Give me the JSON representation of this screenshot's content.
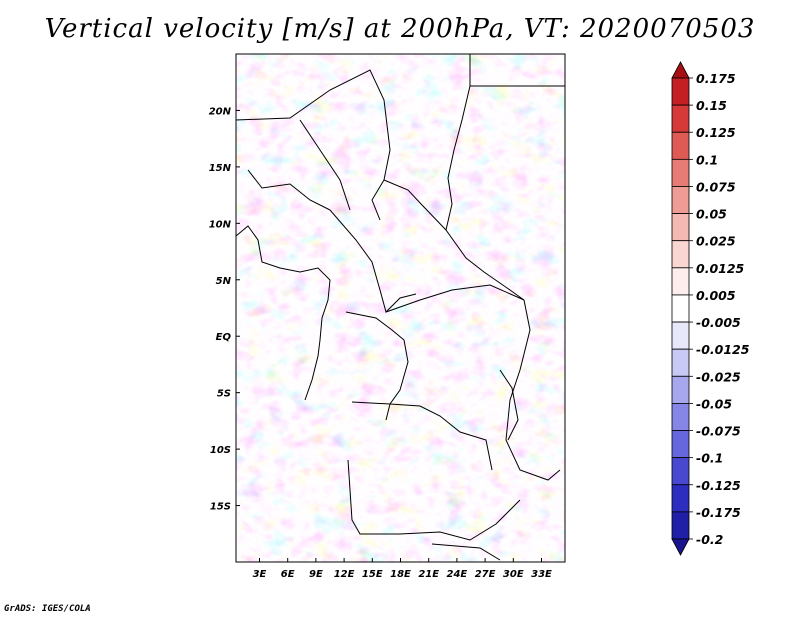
{
  "title": "Vertical velocity [m/s] at 200hPa, VT: 2020070503",
  "credit": "GrADS: IGES/COLA",
  "map": {
    "lon_ticks": [
      "3E",
      "6E",
      "9E",
      "12E",
      "15E",
      "18E",
      "21E",
      "24E",
      "27E",
      "30E",
      "33E"
    ],
    "lat_ticks": [
      "20N",
      "15N",
      "10N",
      "5N",
      "EQ",
      "5S",
      "10S",
      "15S"
    ],
    "lon_range": [
      0.5,
      35.5
    ],
    "lat_range": [
      -20,
      25
    ],
    "field": "vertical velocity",
    "level": "200hPa"
  },
  "colorbar": {
    "labels": [
      "0.175",
      "0.15",
      "0.125",
      "0.1",
      "0.075",
      "0.05",
      "0.025",
      "0.0125",
      "0.005",
      "-0.005",
      "-0.0125",
      "-0.025",
      "-0.05",
      "-0.075",
      "-0.1",
      "-0.125",
      "-0.175",
      "-0.2"
    ],
    "colors": [
      "#a80f14",
      "#c41f22",
      "#d63a38",
      "#e05a55",
      "#e77b75",
      "#ef9c96",
      "#f5b9b4",
      "#f9d6d2",
      "#fdeeed",
      "#ffffff",
      "#e8e8fb",
      "#c9c9f5",
      "#a7a7ee",
      "#8686e6",
      "#6666dd",
      "#4848d1",
      "#2d2dbf",
      "#1f1fa8",
      "#1a148f"
    ]
  }
}
